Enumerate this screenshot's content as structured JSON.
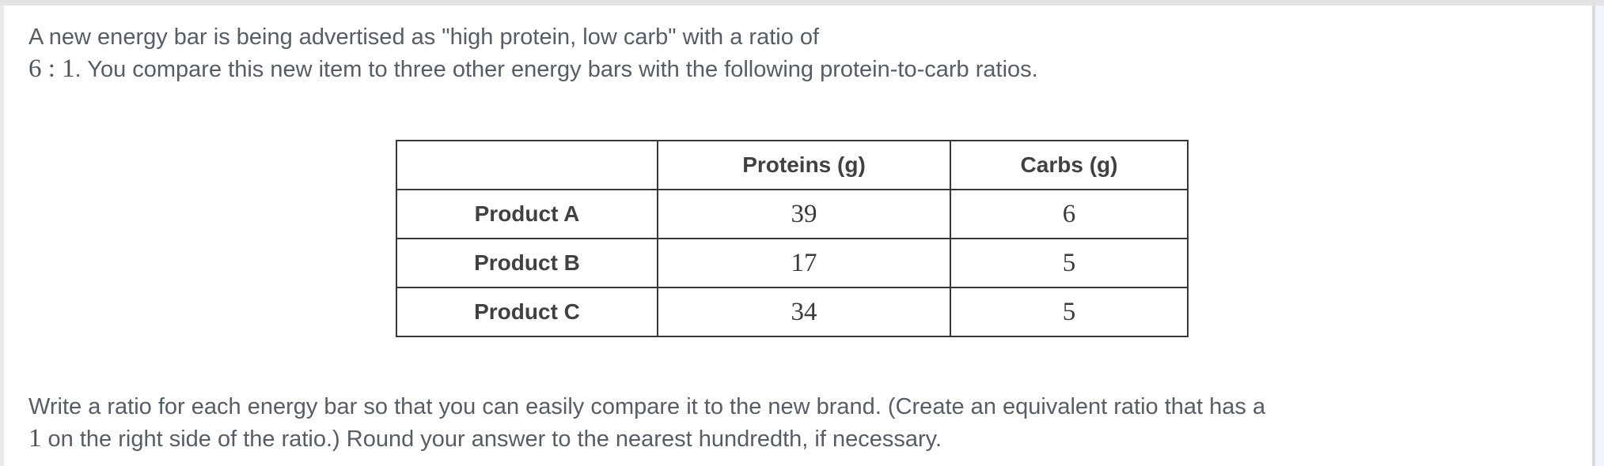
{
  "colors": {
    "panel_background": "#ffffff",
    "top_band": "#e4e4e6",
    "scroll_gutter": "#f0f4fb",
    "body_text": "#565d66",
    "table_border": "#383838"
  },
  "problem": {
    "intro": {
      "line1": "A new energy bar is being advertised as \"high protein, low carb\" with a ratio of",
      "math": "6 : 1",
      "line2_rest": ". You compare this new item to three other energy bars with the following protein-to-carb ratios."
    },
    "table": {
      "headers": [
        "",
        "Proteins (g)",
        "Carbs (g)"
      ],
      "rows": [
        {
          "label": "Product A",
          "proteins": "39",
          "carbs": "6"
        },
        {
          "label": "Product B",
          "proteins": "17",
          "carbs": "5"
        },
        {
          "label": "Product C",
          "proteins": "34",
          "carbs": "5"
        }
      ]
    },
    "instruction": {
      "line1": "Write a ratio for each energy bar so that you can easily compare it to the new brand. (Create an equivalent ratio that has a",
      "math": "1",
      "line2_rest": " on the right side of the ratio.) Round your answer to the nearest hundredth, if necessary."
    }
  }
}
